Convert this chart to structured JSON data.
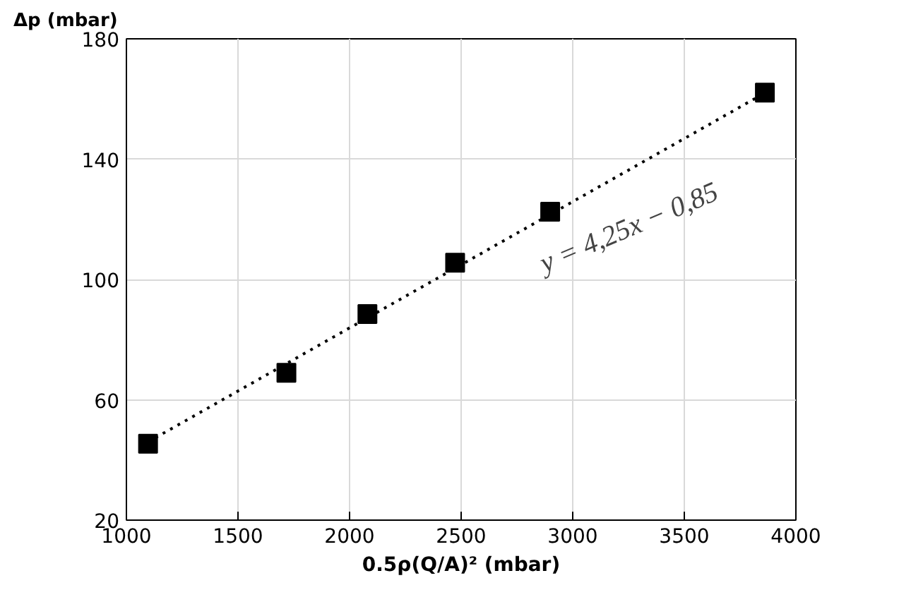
{
  "chart_data": {
    "type": "scatter",
    "xlabel": "0.5ρ(Q/A)² (mbar)",
    "ylabel": "Δp (mbar)",
    "x": [
      1097,
      1717,
      2080,
      2473,
      2899,
      3861
    ],
    "series": [
      {
        "color": "#000000",
        "values": [
          45.4,
          69,
          88.5,
          105.6,
          122.5,
          162.1
        ],
        "marker": "square"
      },
      {
        "type": "line",
        "color": "#000000",
        "x": [
          1097,
          3861
        ],
        "values": [
          46,
          162
        ],
        "line_style": "dotted",
        "marker": "none"
      }
    ],
    "annotations": [
      "y = 4,25x − 0,85"
    ],
    "xlim": [
      1000,
      4000
    ],
    "xticks": [
      1000,
      1500,
      2000,
      2500,
      3000,
      3500,
      4000
    ],
    "ylim": [
      20,
      180
    ],
    "yticks": [
      20,
      60,
      100,
      140,
      180
    ],
    "grid": true
  }
}
